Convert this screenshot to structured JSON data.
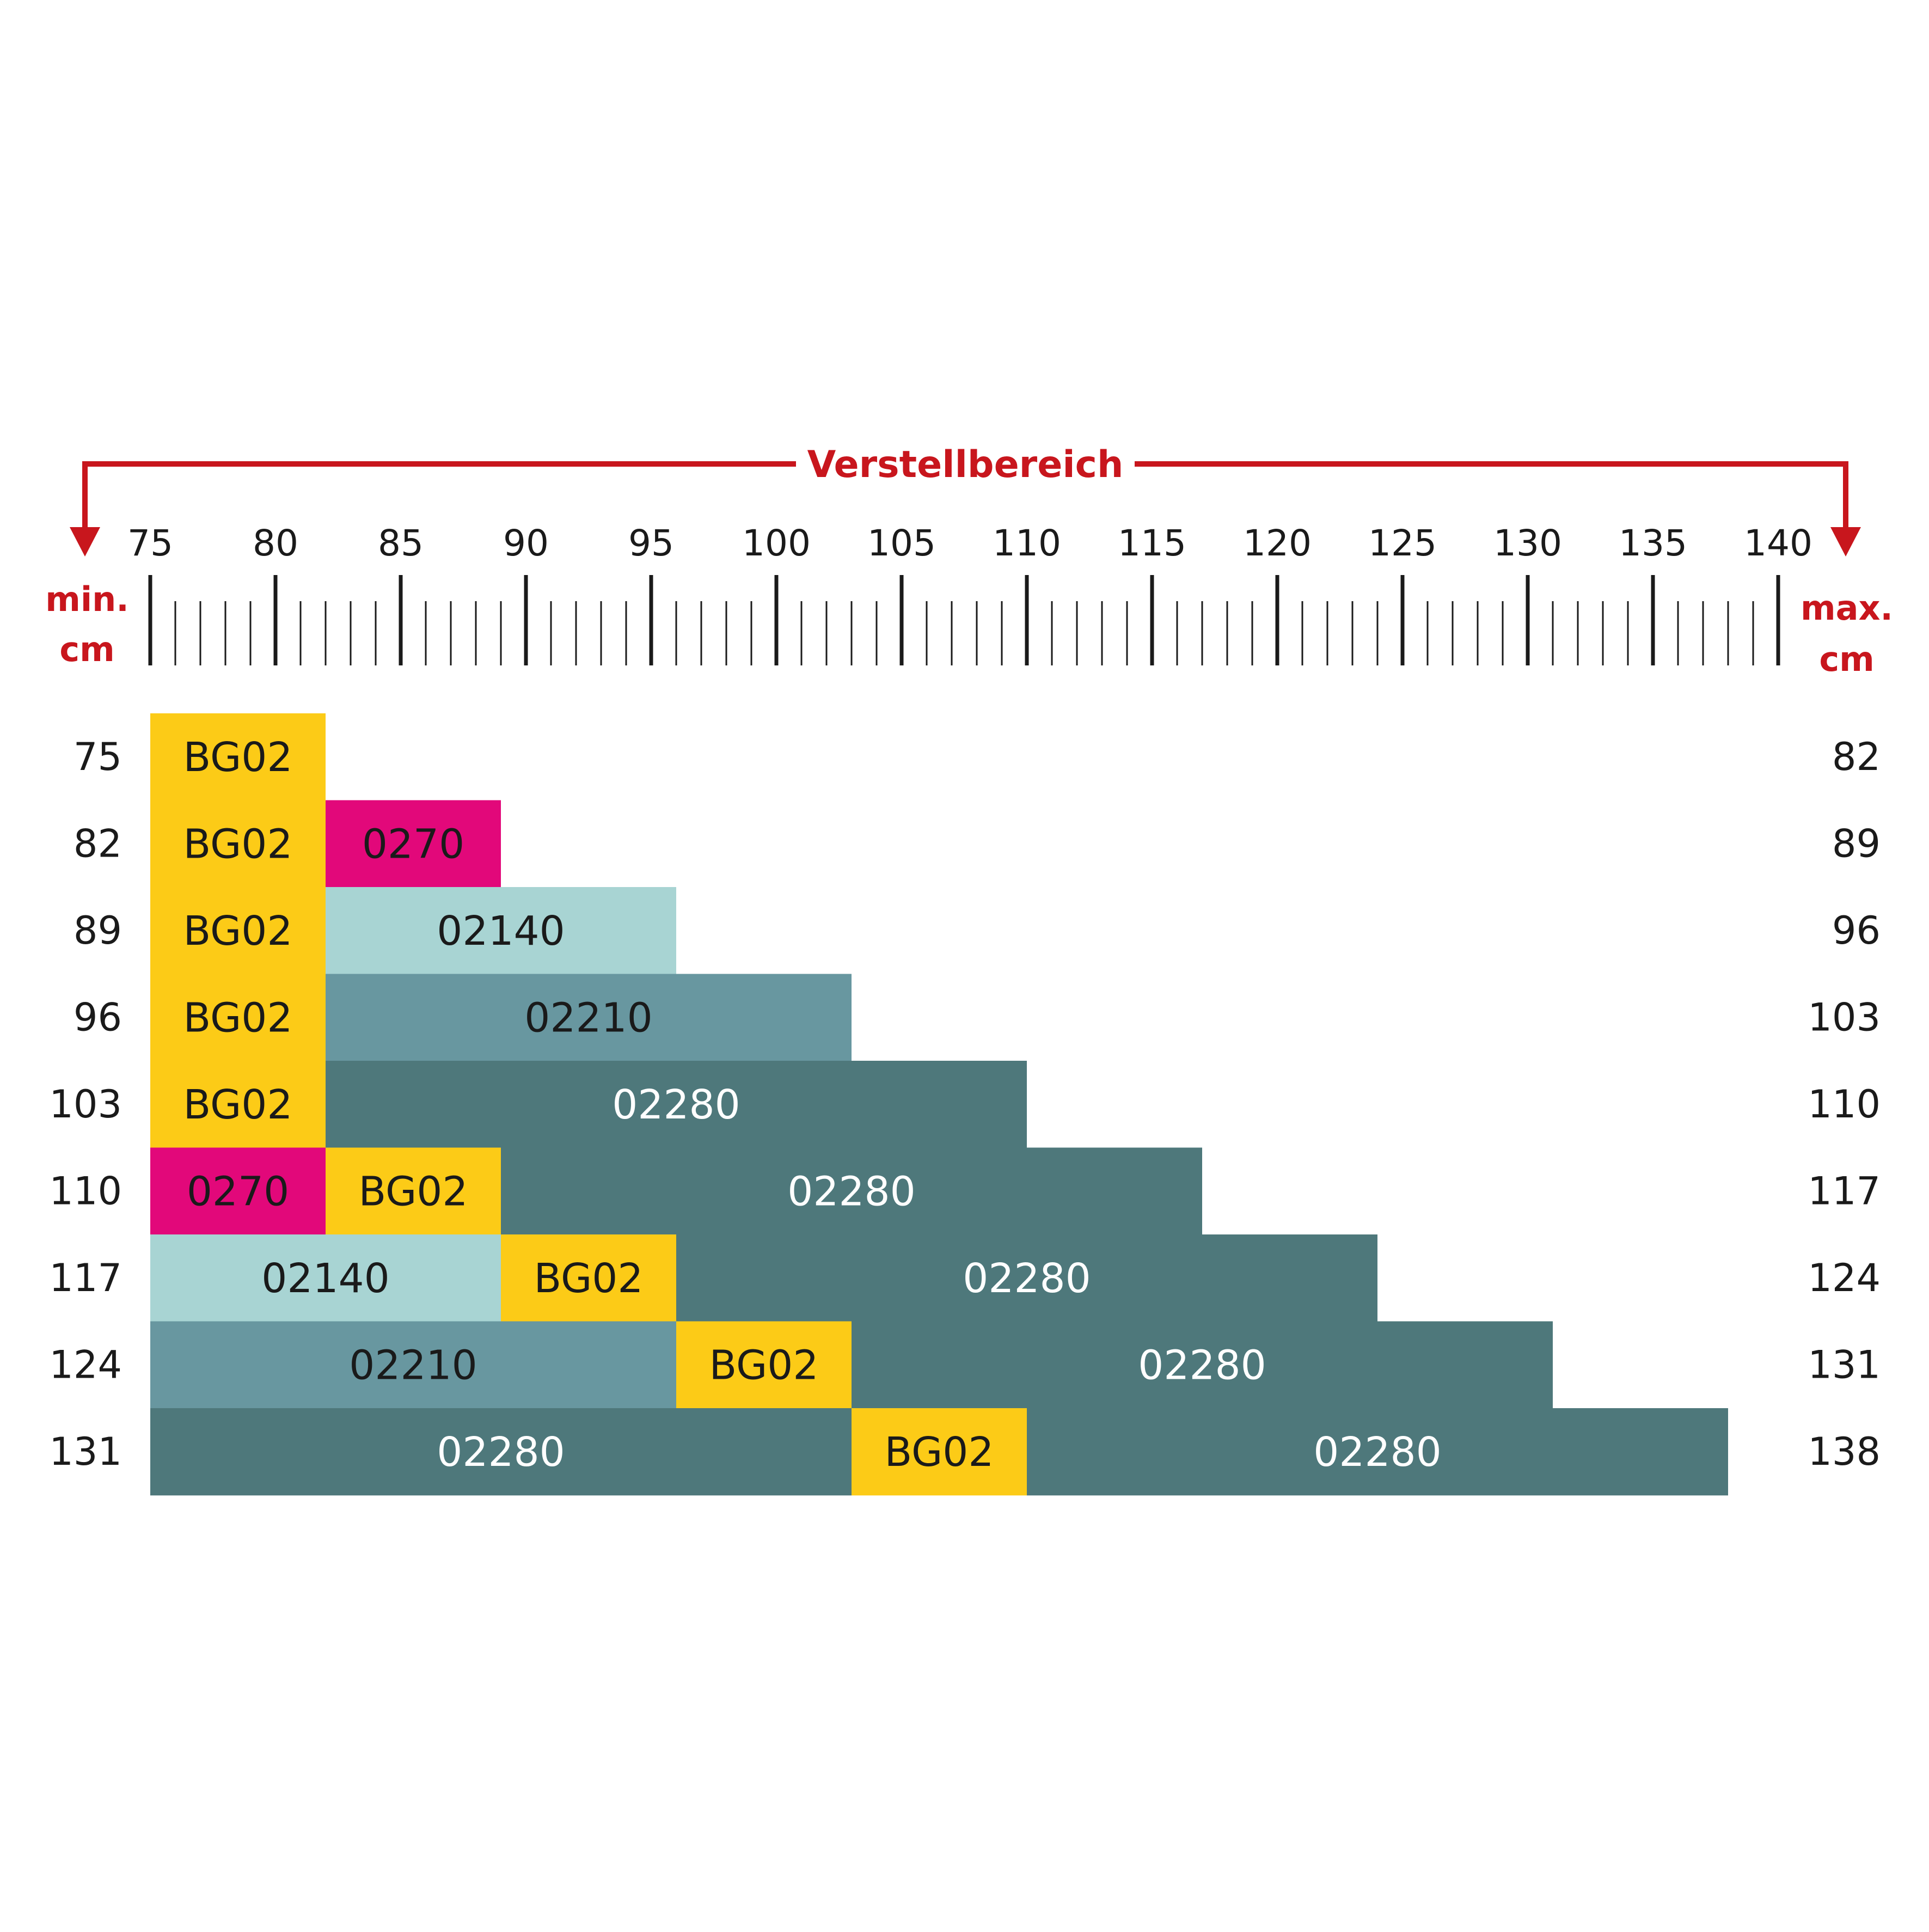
{
  "header": {
    "range_label": "Verstellbereich",
    "min_label": [
      "min.",
      "cm"
    ],
    "max_label": [
      "max.",
      "cm"
    ]
  },
  "scale": {
    "start": 75,
    "end": 140,
    "labels": [
      "75",
      "80",
      "85",
      "90",
      "95",
      "100",
      "105",
      "110",
      "115",
      "120",
      "125",
      "130",
      "135",
      "140"
    ],
    "minor_ticks_per_cm": 1,
    "major_every": 5
  },
  "colors": {
    "accent_red": "#c8161d",
    "BG02": "#fccb17",
    "0270": "#e2087a",
    "02140": "#a8d4d3",
    "02210": "#6897a0",
    "02280": "#4e787b",
    "text_dark": "#1a1a1a",
    "text_light": "#ffffff"
  },
  "rows": [
    {
      "min": "75",
      "max": "82",
      "segments": [
        {
          "code": "BG02",
          "from": 75,
          "to": 82
        }
      ]
    },
    {
      "min": "82",
      "max": "89",
      "segments": [
        {
          "code": "BG02",
          "from": 75,
          "to": 82
        },
        {
          "code": "0270",
          "from": 82,
          "to": 89
        }
      ]
    },
    {
      "min": "89",
      "max": "96",
      "segments": [
        {
          "code": "BG02",
          "from": 75,
          "to": 82
        },
        {
          "code": "02140",
          "from": 82,
          "to": 96
        }
      ]
    },
    {
      "min": "96",
      "max": "103",
      "segments": [
        {
          "code": "BG02",
          "from": 75,
          "to": 82
        },
        {
          "code": "02210",
          "from": 82,
          "to": 103
        }
      ]
    },
    {
      "min": "103",
      "max": "110",
      "segments": [
        {
          "code": "BG02",
          "from": 75,
          "to": 82
        },
        {
          "code": "02280",
          "from": 82,
          "to": 110
        }
      ]
    },
    {
      "min": "110",
      "max": "117",
      "segments": [
        {
          "code": "0270",
          "from": 75,
          "to": 82
        },
        {
          "code": "BG02",
          "from": 82,
          "to": 89
        },
        {
          "code": "02280",
          "from": 89,
          "to": 117
        }
      ]
    },
    {
      "min": "117",
      "max": "124",
      "segments": [
        {
          "code": "02140",
          "from": 75,
          "to": 89
        },
        {
          "code": "BG02",
          "from": 89,
          "to": 96
        },
        {
          "code": "02280",
          "from": 96,
          "to": 124
        }
      ]
    },
    {
      "min": "124",
      "max": "131",
      "segments": [
        {
          "code": "02210",
          "from": 75,
          "to": 96
        },
        {
          "code": "BG02",
          "from": 96,
          "to": 103
        },
        {
          "code": "02280",
          "from": 103,
          "to": 131
        }
      ]
    },
    {
      "min": "131",
      "max": "138",
      "segments": [
        {
          "code": "02280",
          "from": 75,
          "to": 103
        },
        {
          "code": "BG02",
          "from": 103,
          "to": 110
        },
        {
          "code": "02280",
          "from": 110,
          "to": 138
        }
      ]
    }
  ]
}
